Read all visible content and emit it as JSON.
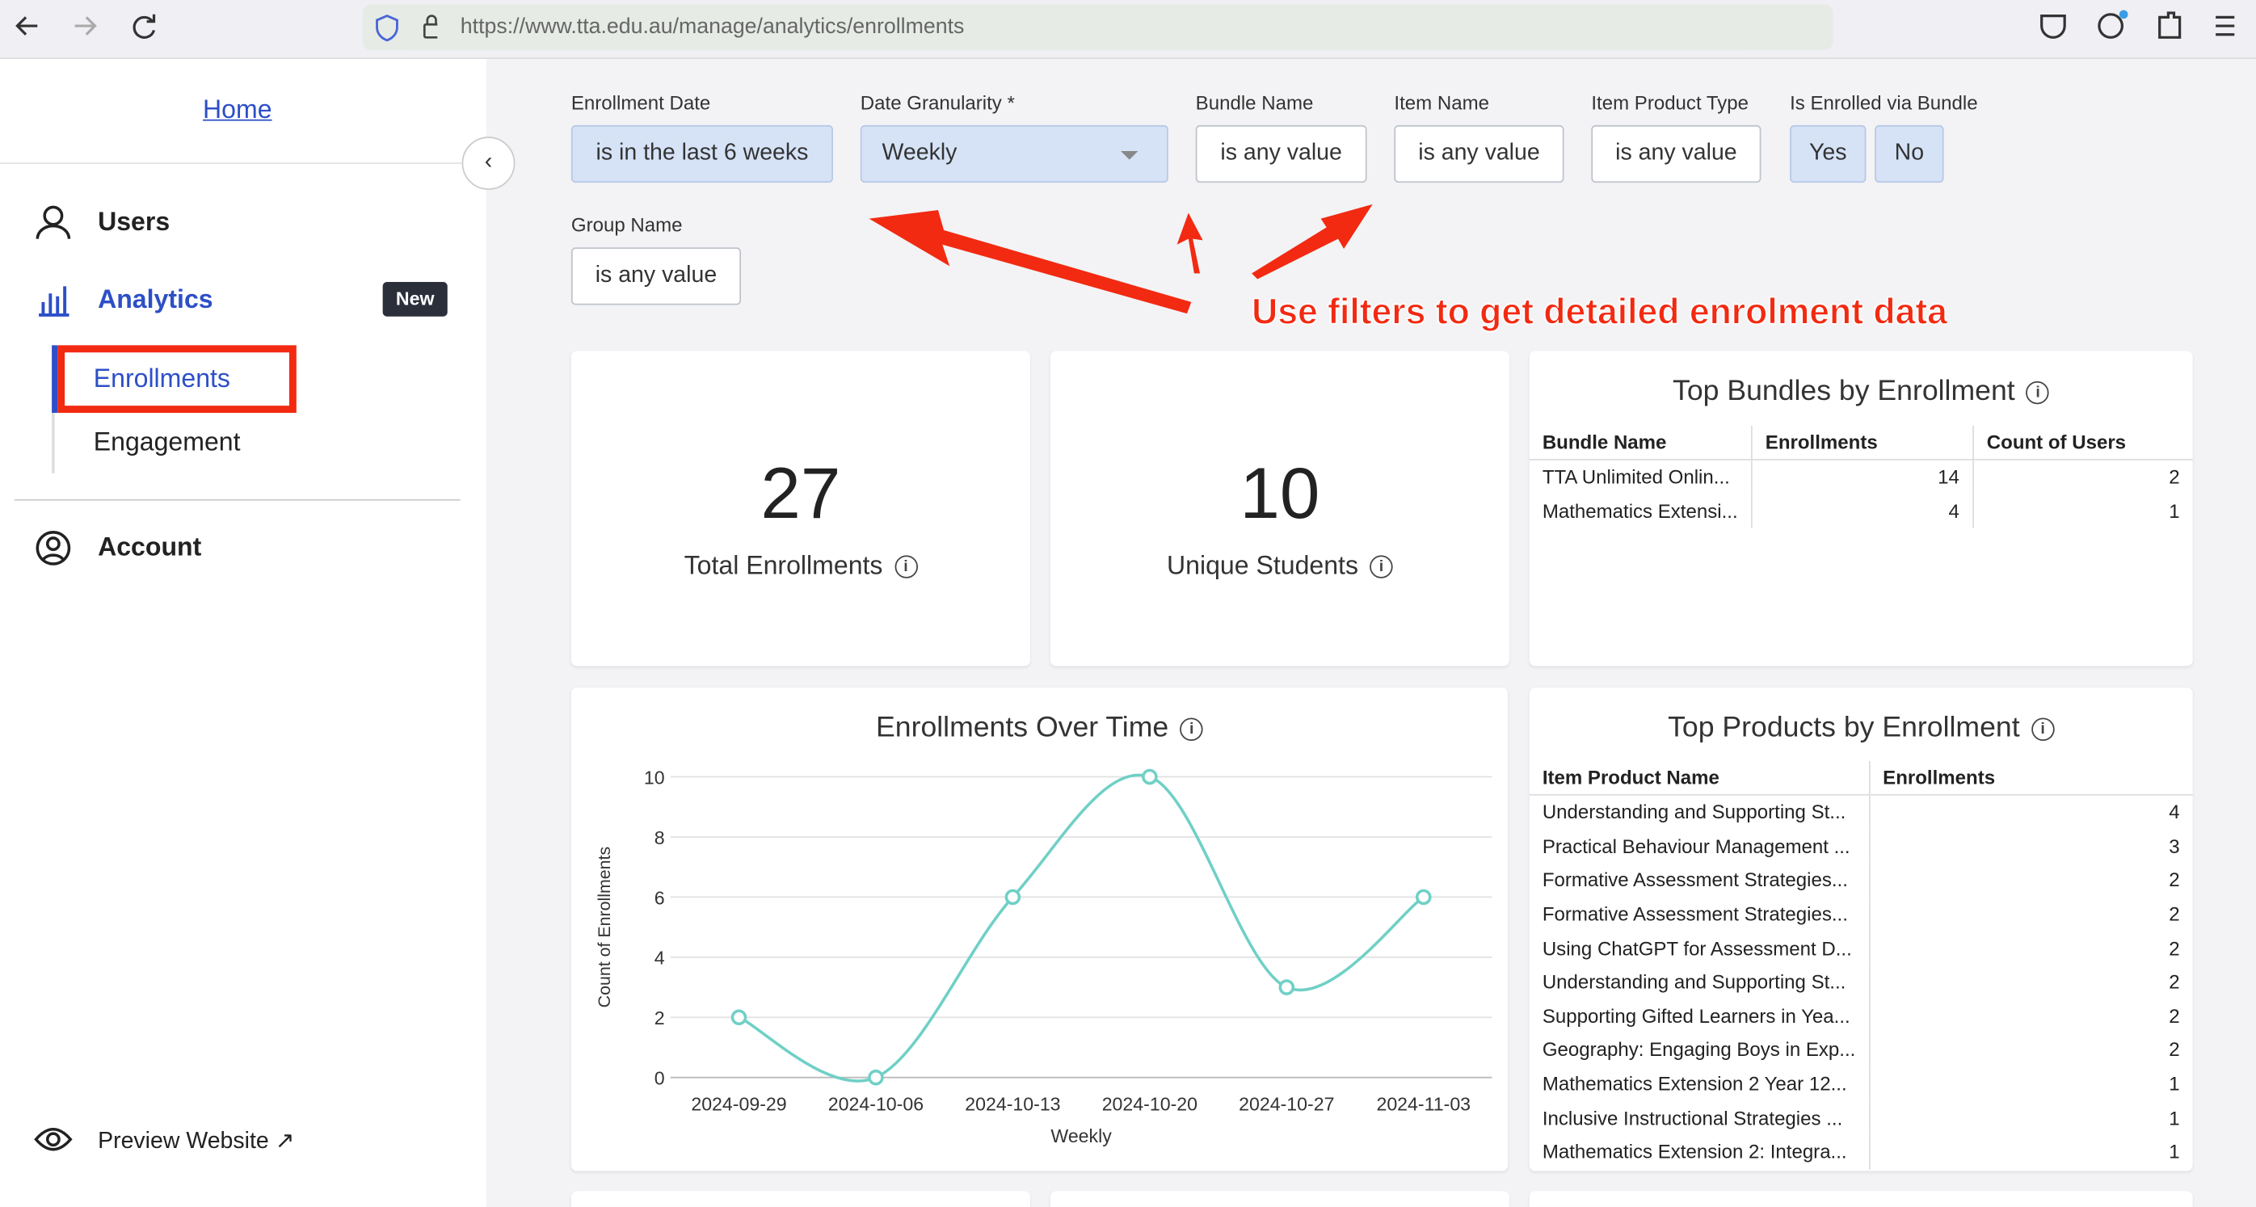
{
  "browser": {
    "url": "https://www.tta.edu.au/manage/analytics/enrollments"
  },
  "sidebar": {
    "home": "Home",
    "users": "Users",
    "analytics": "Analytics",
    "badge": "New",
    "enrollments": "Enrollments",
    "engagement": "Engagement",
    "account": "Account",
    "preview": "Preview Website ↗"
  },
  "filters": [
    {
      "label": "Enrollment Date",
      "value": "is in the last 6 weeks"
    },
    {
      "label": "Date Granularity *",
      "value": "Weekly"
    },
    {
      "label": "Bundle Name",
      "value": "is any value"
    },
    {
      "label": "Item Name",
      "value": "is any value"
    },
    {
      "label": "Item Product Type",
      "value": "is any value"
    },
    {
      "label": "Is Enrolled via Bundle",
      "options": [
        "Yes",
        "No"
      ]
    },
    {
      "label": "Group Name",
      "value": "is any value"
    }
  ],
  "annotation": "Use filters to get detailed enrolment data",
  "kpis": [
    {
      "value": "27",
      "label": "Total Enrollments"
    },
    {
      "value": "10",
      "label": "Unique Students"
    }
  ],
  "top_bundles": {
    "title": "Top Bundles by Enrollment",
    "columns": [
      "Bundle Name",
      "Enrollments",
      "Count of Users"
    ],
    "rows": [
      [
        "TTA Unlimited Onlin...",
        "14",
        "2"
      ],
      [
        "Mathematics Extensi...",
        "4",
        "1"
      ]
    ]
  },
  "chart_data": {
    "type": "line",
    "title": "Enrollments Over Time",
    "x_label": "Weekly",
    "y_label": "Count of Enrollments",
    "categories": [
      "2024-09-29",
      "2024-10-06",
      "2024-10-13",
      "2024-10-20",
      "2024-10-27",
      "2024-11-03"
    ],
    "values": [
      2,
      0,
      6,
      10,
      3,
      6
    ],
    "color": "#6fd0c6",
    "ylim": [
      0,
      10
    ],
    "yticks": [
      0,
      2,
      4,
      6,
      8,
      10
    ],
    "grid": true
  },
  "top_products": {
    "title": "Top Products by Enrollment",
    "columns": [
      "Item Product Name",
      "Enrollments"
    ],
    "rows": [
      [
        "Understanding and Supporting St...",
        "4"
      ],
      [
        "Practical Behaviour Management ...",
        "3"
      ],
      [
        "Formative Assessment Strategies...",
        "2"
      ],
      [
        "Formative Assessment Strategies...",
        "2"
      ],
      [
        "Using ChatGPT for Assessment D...",
        "2"
      ],
      [
        "Understanding and Supporting St...",
        "2"
      ],
      [
        "Supporting Gifted Learners in Yea...",
        "2"
      ],
      [
        "Geography: Engaging Boys in Exp...",
        "2"
      ],
      [
        "Mathematics Extension 2 Year 12...",
        "1"
      ],
      [
        "Inclusive Instructional Strategies ...",
        "1"
      ],
      [
        "Mathematics Extension 2: Integra...",
        "1"
      ]
    ]
  }
}
